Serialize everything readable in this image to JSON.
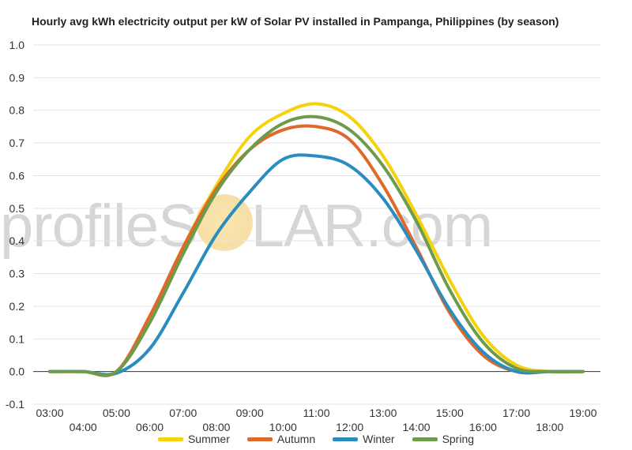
{
  "chart_data": {
    "type": "line",
    "title": "Hourly avg kWh electricity output per kW of Solar PV installed in Pampanga, Philippines (by season)",
    "xlabel": "",
    "ylabel": "",
    "ylim": [
      -0.1,
      1.0
    ],
    "yticks": [
      "-0.1",
      "0.0",
      "0.1",
      "0.2",
      "0.3",
      "0.4",
      "0.5",
      "0.6",
      "0.7",
      "0.8",
      "0.9",
      "1.0"
    ],
    "x": [
      "03:00",
      "04:00",
      "05:00",
      "06:00",
      "07:00",
      "08:00",
      "09:00",
      "10:00",
      "11:00",
      "12:00",
      "13:00",
      "14:00",
      "15:00",
      "16:00",
      "17:00",
      "18:00",
      "19:00"
    ],
    "grid": true,
    "legend_position": "bottom",
    "series": [
      {
        "name": "Summer",
        "color": "#f5d20c",
        "values": [
          0.0,
          0.0,
          0.0,
          0.16,
          0.38,
          0.57,
          0.72,
          0.79,
          0.82,
          0.78,
          0.66,
          0.48,
          0.28,
          0.11,
          0.02,
          0.0,
          0.0
        ]
      },
      {
        "name": "Autumn",
        "color": "#e0692a",
        "values": [
          0.0,
          0.0,
          0.0,
          0.17,
          0.38,
          0.56,
          0.68,
          0.74,
          0.75,
          0.71,
          0.57,
          0.38,
          0.18,
          0.05,
          0.0,
          0.0,
          0.0
        ]
      },
      {
        "name": "Winter",
        "color": "#2b8cbf",
        "values": [
          0.0,
          0.0,
          -0.005,
          0.07,
          0.24,
          0.42,
          0.55,
          0.65,
          0.66,
          0.63,
          0.53,
          0.37,
          0.19,
          0.06,
          0.0,
          0.0,
          0.0
        ]
      },
      {
        "name": "Spring",
        "color": "#6d9b4c",
        "values": [
          0.0,
          0.0,
          0.0,
          0.15,
          0.36,
          0.55,
          0.68,
          0.76,
          0.78,
          0.74,
          0.63,
          0.46,
          0.25,
          0.09,
          0.01,
          0.0,
          0.0
        ]
      }
    ]
  },
  "watermark": {
    "pre": "profile",
    "post": "LAR.com"
  }
}
